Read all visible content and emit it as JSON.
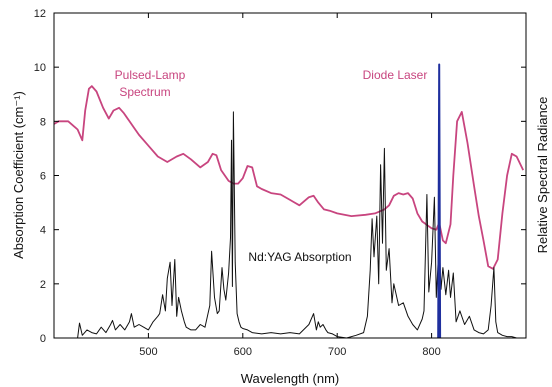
{
  "chart_data": {
    "type": "line",
    "xlabel": "Wavelength (nm)",
    "ylabel_left": "Absorption Coefficient (cm⁻¹)",
    "ylabel_right": "Relative Spectral Radiance",
    "xlim": [
      400,
      900
    ],
    "ylim": [
      0,
      12
    ],
    "x_ticks": [
      500,
      600,
      700,
      800
    ],
    "y_ticks": [
      0,
      2,
      4,
      6,
      8,
      10,
      12
    ],
    "grid": false,
    "colors": {
      "absorption": "#111111",
      "lamp": "#c8457f",
      "diode": "#1f2f9e",
      "axis": "#000000"
    },
    "annotations": {
      "lamp": [
        "Pulsed-Lamp",
        "Spectrum"
      ],
      "diode": "Diode Laser",
      "absorption": "Nd:YAG Absorption"
    },
    "series": [
      {
        "key": "lamp",
        "x": [
          400,
          405,
          415,
          425,
          430,
          433,
          437,
          440,
          445,
          452,
          458,
          463,
          469,
          474,
          480,
          490,
          500,
          510,
          520,
          530,
          537,
          545,
          555,
          563,
          568,
          572,
          577,
          585,
          590,
          595,
          600,
          605,
          610,
          615,
          620,
          630,
          640,
          650,
          655,
          660,
          670,
          675,
          680,
          686,
          692,
          700,
          715,
          730,
          740,
          750,
          755,
          760,
          765,
          770,
          775,
          780,
          785,
          790,
          800,
          805,
          808,
          812,
          815,
          820,
          823,
          827,
          832,
          838,
          845,
          850,
          855,
          860,
          865,
          870,
          875,
          880,
          885,
          890,
          897
        ],
        "y": [
          7.9,
          8.0,
          8.0,
          7.7,
          7.3,
          8.4,
          9.2,
          9.3,
          9.1,
          8.5,
          8.1,
          8.4,
          8.5,
          8.3,
          8.0,
          7.5,
          7.1,
          6.7,
          6.5,
          6.7,
          6.8,
          6.6,
          6.3,
          6.5,
          6.8,
          6.75,
          6.2,
          5.8,
          5.7,
          5.7,
          5.9,
          6.35,
          6.3,
          5.6,
          5.5,
          5.35,
          5.3,
          5.1,
          5.0,
          4.9,
          5.2,
          5.25,
          5.0,
          4.75,
          4.7,
          4.6,
          4.5,
          4.55,
          4.6,
          4.75,
          4.9,
          5.25,
          5.35,
          5.3,
          5.35,
          5.15,
          4.6,
          4.3,
          4.05,
          4.0,
          4.25,
          3.6,
          3.5,
          4.2,
          6.0,
          8.0,
          8.35,
          7.2,
          5.6,
          4.5,
          3.6,
          2.65,
          2.55,
          2.9,
          4.6,
          6.0,
          6.8,
          6.7,
          6.2
        ]
      },
      {
        "key": "absorption",
        "x": [
          400,
          425,
          427,
          430,
          435,
          440,
          445,
          450,
          455,
          460,
          462,
          465,
          470,
          475,
          480,
          482,
          485,
          490,
          495,
          500,
          505,
          510,
          512,
          515,
          518,
          520,
          523,
          525,
          528,
          530,
          532,
          535,
          538,
          540,
          545,
          550,
          555,
          560,
          565,
          567,
          570,
          573,
          575,
          578,
          580,
          582,
          585,
          587,
          588,
          589,
          590,
          592,
          594,
          596,
          598,
          600,
          605,
          610,
          620,
          630,
          640,
          650,
          660,
          670,
          675,
          678,
          680,
          682,
          685,
          688,
          690,
          695,
          700,
          710,
          720,
          728,
          732,
          735,
          737,
          739,
          742,
          744,
          746,
          748,
          750,
          752,
          755,
          758,
          760,
          765,
          770,
          775,
          780,
          785,
          790,
          792,
          795,
          797,
          800,
          803,
          805,
          808,
          810,
          812,
          815,
          818,
          820,
          823,
          826,
          830,
          835,
          840,
          845,
          850,
          855,
          860,
          863,
          866,
          868,
          870,
          875,
          880,
          885,
          890,
          900
        ],
        "y": [
          0,
          0,
          0.55,
          0.1,
          0.3,
          0.2,
          0.15,
          0.4,
          0.2,
          0.5,
          0.65,
          0.3,
          0.5,
          0.3,
          0.6,
          0.9,
          0.4,
          0.5,
          0.4,
          0.3,
          0.6,
          0.8,
          0.9,
          1.6,
          1.0,
          2.2,
          2.8,
          1.2,
          2.9,
          0.8,
          1.5,
          1.0,
          0.6,
          0.4,
          0.3,
          0.3,
          0.5,
          0.4,
          1.2,
          3.2,
          1.5,
          0.9,
          1.0,
          2.6,
          1.8,
          1.4,
          2.4,
          3.7,
          7.3,
          1.9,
          8.35,
          2.8,
          0.9,
          0.6,
          0.4,
          0.35,
          0.3,
          0.2,
          0.15,
          0.2,
          0.15,
          0.2,
          0.15,
          0.5,
          0.9,
          0.3,
          0.6,
          0.4,
          0.5,
          0.3,
          0.2,
          0.15,
          0.05,
          0.0,
          0.1,
          0.2,
          0.8,
          2.5,
          4.4,
          3.0,
          4.5,
          2.0,
          6.4,
          3.5,
          7.0,
          2.5,
          3.3,
          1.3,
          2.0,
          1.2,
          1.3,
          0.8,
          0.5,
          0.3,
          0.7,
          1.0,
          5.3,
          1.7,
          2.8,
          5.2,
          1.5,
          3.6,
          1.8,
          2.6,
          1.6,
          2.5,
          1.5,
          2.4,
          0.6,
          1.0,
          0.5,
          0.8,
          0.3,
          0.2,
          0.15,
          0.3,
          1.2,
          2.6,
          0.6,
          0.2,
          0.1,
          0.05,
          0.05,
          0.0,
          0.0
        ]
      },
      {
        "key": "diode",
        "x": [
          807,
          808,
          809
        ],
        "y": [
          0,
          10.1,
          0
        ]
      }
    ]
  }
}
